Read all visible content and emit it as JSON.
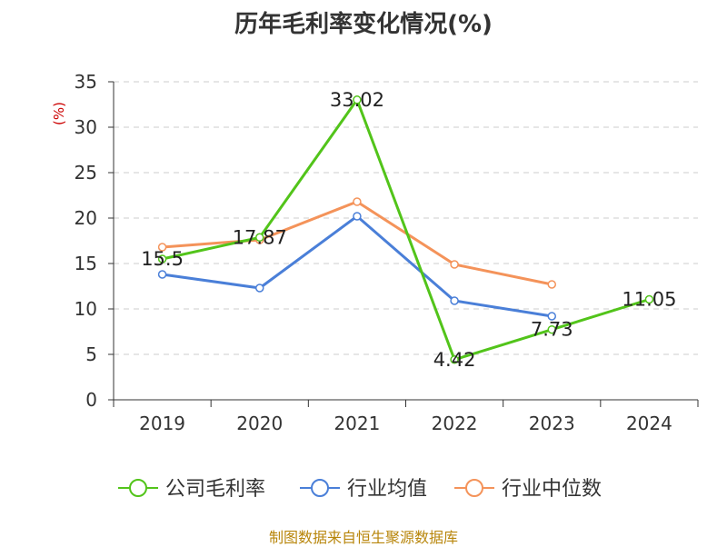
{
  "chart_data": {
    "type": "line",
    "title": "历年毛利率变化情况(%)",
    "ylabel": "(%)",
    "xlabel": "",
    "categories": [
      "2019",
      "2020",
      "2021",
      "2022",
      "2023",
      "2024"
    ],
    "ylim": [
      0,
      35
    ],
    "yticks": [
      0,
      5,
      10,
      15,
      20,
      25,
      30,
      35
    ],
    "grid": "horizontal dashed",
    "legend_position": "bottom",
    "series": [
      {
        "name": "公司毛利率",
        "color": "#52c41a",
        "values": [
          15.5,
          17.87,
          33.02,
          4.42,
          7.73,
          11.05
        ],
        "labels": [
          "15.5",
          "17.87",
          "33.02",
          "4.42",
          "7.73",
          "11.05"
        ]
      },
      {
        "name": "行业均值",
        "color": "#4a7fd8",
        "values": [
          13.8,
          12.3,
          20.2,
          10.9,
          9.2,
          null
        ]
      },
      {
        "name": "行业中位数",
        "color": "#f4935a",
        "values": [
          16.8,
          17.6,
          21.8,
          14.9,
          12.7,
          null
        ]
      }
    ]
  },
  "source": "制图数据来自恒生聚源数据库"
}
